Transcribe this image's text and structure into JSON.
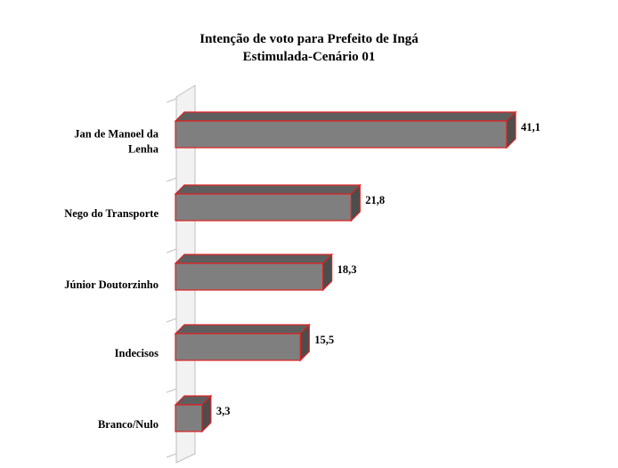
{
  "chart_data": {
    "type": "bar",
    "orientation": "horizontal",
    "title": [
      "Intenção de voto para Prefeito de Ingá",
      "Estimulada-Cenário 01"
    ],
    "categories": [
      [
        "Jan de Manoel da",
        "Lenha"
      ],
      [
        "Nego do Transporte"
      ],
      [
        "Júnior Doutorzinho"
      ],
      [
        "Indecisos"
      ],
      [
        "Branco/Nulo"
      ]
    ],
    "values": [
      41.1,
      21.8,
      18.3,
      15.5,
      3.3
    ],
    "value_labels": [
      "41,1",
      "21,8",
      "18,3",
      "15,5",
      "3,3"
    ],
    "xlim": [
      0,
      45
    ],
    "grid": false,
    "legend": "none",
    "colors": {
      "bar_front": "#7f7f7f",
      "bar_top": "#5e5e5e",
      "bar_side": "#4d4d4d",
      "bar_edge": "#e02020",
      "axis_wall": "#bfbfbf"
    }
  }
}
